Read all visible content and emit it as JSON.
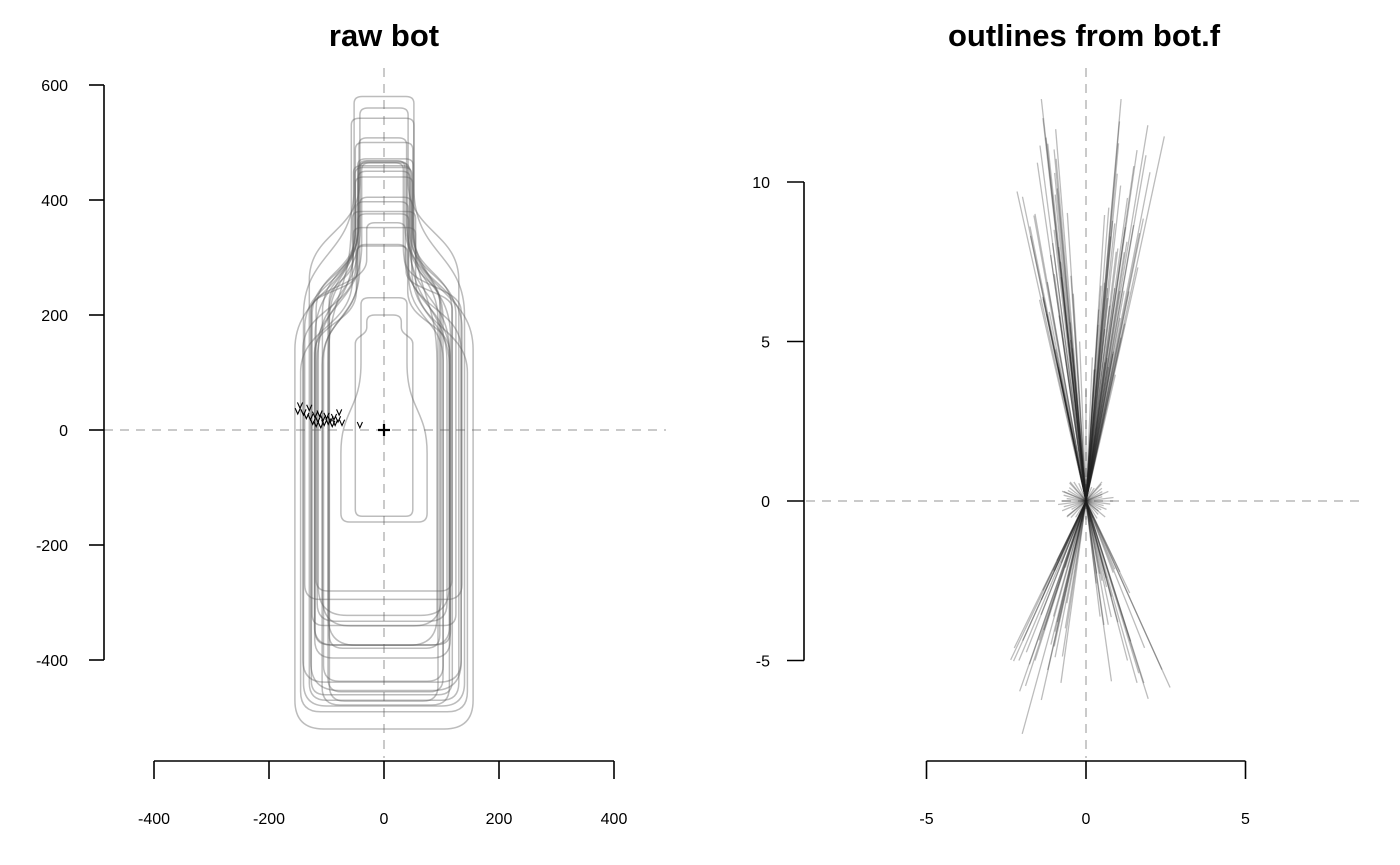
{
  "chart_data": [
    {
      "type": "scatter",
      "title": "raw bot",
      "xlabel": "",
      "ylabel": "",
      "xlim": [
        -400,
        400
      ],
      "ylim": [
        -400,
        600
      ],
      "x_ticks": [
        -400,
        -200,
        0,
        200,
        400
      ],
      "y_ticks": [
        -400,
        -200,
        0,
        200,
        400,
        600
      ],
      "x_tick_labels": [
        "-400",
        "-200",
        "0",
        "200",
        "400"
      ],
      "y_tick_labels": [
        "-400",
        "-200",
        "0",
        "200",
        "400",
        "600"
      ],
      "reference_lines": {
        "x": 0,
        "y": 0
      },
      "centroid": [
        0,
        0
      ],
      "outline_count": 40,
      "start_points": [
        [
          -150,
          32
        ],
        [
          -146,
          42
        ],
        [
          -140,
          30
        ],
        [
          -135,
          24
        ],
        [
          -130,
          38
        ],
        [
          -128,
          22
        ],
        [
          -124,
          14
        ],
        [
          -120,
          26
        ],
        [
          -118,
          10
        ],
        [
          -115,
          18
        ],
        [
          -112,
          28
        ],
        [
          -110,
          8
        ],
        [
          -106,
          20
        ],
        [
          -104,
          12
        ],
        [
          -100,
          24
        ],
        [
          -97,
          14
        ],
        [
          -93,
          18
        ],
        [
          -90,
          10
        ],
        [
          -87,
          22
        ],
        [
          -85,
          12
        ],
        [
          -80,
          18
        ],
        [
          -78,
          30
        ],
        [
          -73,
          12
        ],
        [
          -42,
          8
        ]
      ],
      "grid": false,
      "legend": "none"
    },
    {
      "type": "line",
      "title": "outlines from bot.f",
      "xlabel": "",
      "ylabel": "",
      "xlim": [
        -5,
        5
      ],
      "ylim": [
        -5,
        10
      ],
      "x_ticks": [
        -5,
        0,
        5
      ],
      "y_ticks": [
        -5,
        0,
        5,
        10
      ],
      "x_tick_labels": [
        "-5",
        "0",
        "5"
      ],
      "y_tick_labels": [
        "-5",
        "0",
        "5",
        "10"
      ],
      "reference_lines": {
        "x": 0,
        "y": 0
      },
      "grid": false,
      "legend": "none"
    }
  ],
  "colors": {
    "outline": "#5f5f5f",
    "ray": "#222222",
    "reference": "#b8b8b8",
    "axis": "#000000"
  }
}
